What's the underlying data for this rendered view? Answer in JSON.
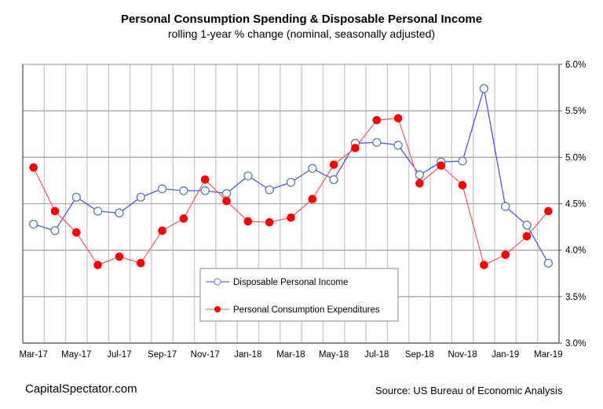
{
  "chart_data": {
    "type": "line",
    "title": "Personal Consumption Spending & Disposable Personal Income",
    "subtitle": "rolling 1-year % change (nominal, seasonally adjusted)",
    "x": [
      "Mar-17",
      "Apr-17",
      "May-17",
      "Jun-17",
      "Jul-17",
      "Aug-17",
      "Sep-17",
      "Oct-17",
      "Nov-17",
      "Dec-17",
      "Jan-18",
      "Feb-18",
      "Mar-18",
      "Apr-18",
      "May-18",
      "Jun-18",
      "Jul-18",
      "Aug-18",
      "Sep-18",
      "Oct-18",
      "Nov-18",
      "Dec-18",
      "Jan-19",
      "Feb-19",
      "Mar-19"
    ],
    "xtick_labels": [
      "Mar-17",
      "May-17",
      "Jul-17",
      "Sep-17",
      "Nov-17",
      "Jan-18",
      "Mar-18",
      "May-18",
      "Jul-18",
      "Sep-18",
      "Nov-18",
      "Jan-19",
      "Mar-19"
    ],
    "ytick_labels": [
      "3.0%",
      "3.5%",
      "4.0%",
      "4.5%",
      "5.0%",
      "5.5%",
      "6.0%"
    ],
    "ylim": [
      3.0,
      6.0
    ],
    "yaxis_side": "right",
    "grid": true,
    "legend_position": "bottom-center",
    "series": [
      {
        "name": "Disposable Personal Income",
        "color": "#3333ee",
        "marker": "open-circle",
        "values": [
          4.28,
          4.21,
          4.57,
          4.42,
          4.4,
          4.57,
          4.66,
          4.64,
          4.64,
          4.61,
          4.8,
          4.65,
          4.73,
          4.88,
          4.76,
          5.15,
          5.16,
          5.13,
          4.81,
          4.95,
          4.96,
          5.74,
          4.47,
          4.27,
          3.86
        ]
      },
      {
        "name": "Personal Consumption Expenditures",
        "color": "#ff0000",
        "marker": "filled-circle",
        "values": [
          4.89,
          4.42,
          4.19,
          3.84,
          3.93,
          3.86,
          4.21,
          4.34,
          4.76,
          4.53,
          4.31,
          4.3,
          4.35,
          4.55,
          4.92,
          5.1,
          5.4,
          5.42,
          4.72,
          4.91,
          4.7,
          3.84,
          3.95,
          4.15,
          4.42
        ]
      }
    ]
  },
  "footer": {
    "brand": "CapitalSpectator.com",
    "source": "Source:  US Bureau  of Economic Analysis"
  }
}
